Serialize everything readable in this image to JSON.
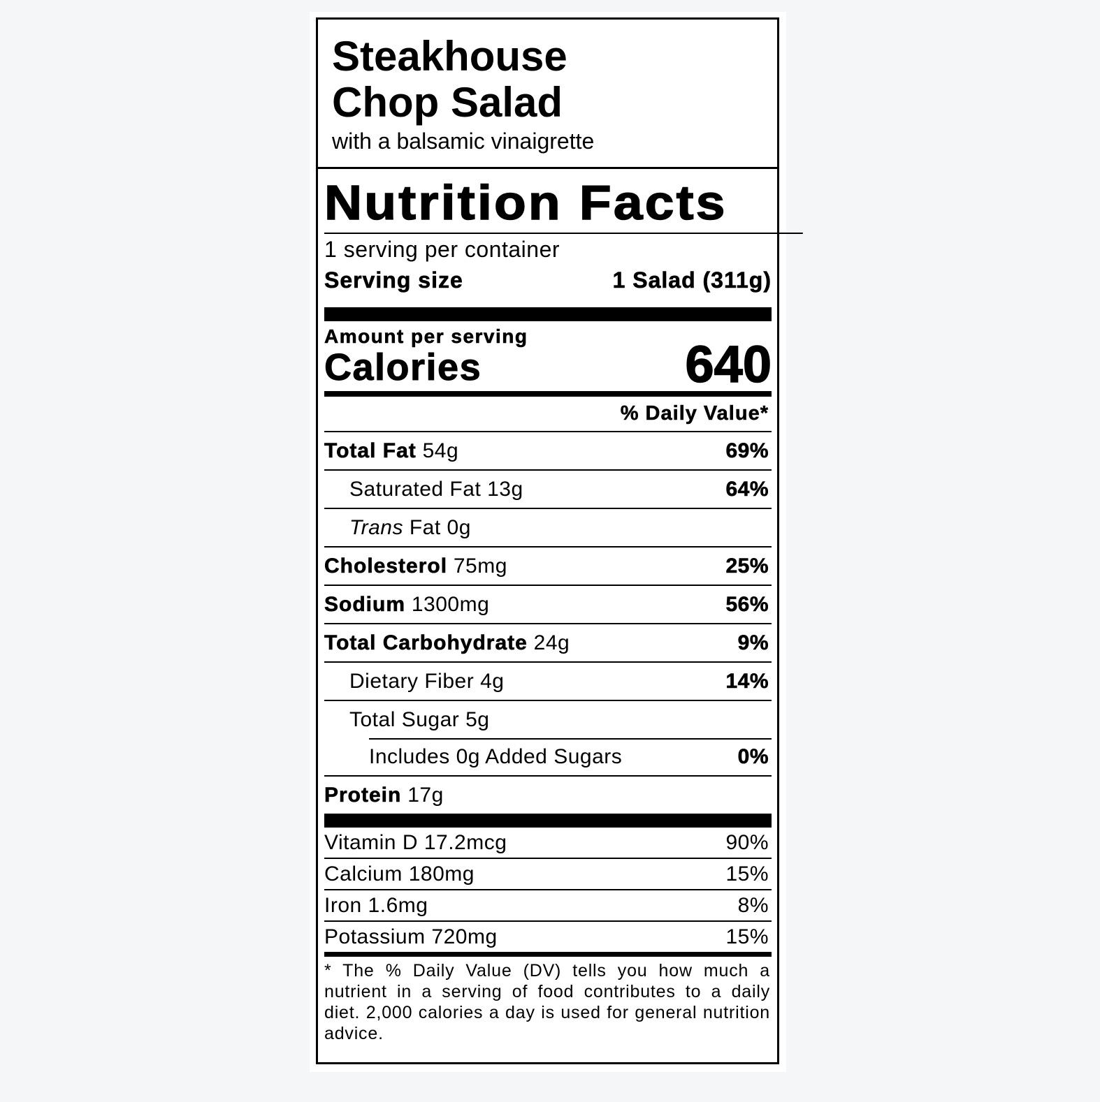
{
  "header": {
    "title": "Steakhouse Chop Salad",
    "subtitle": "with a balsamic vinaigrette"
  },
  "label": {
    "heading": "Nutrition Facts",
    "servings": "1 serving per container",
    "serving_size_label": "Serving size",
    "serving_size": "1 Salad (311g)",
    "amount_per_serving": "Amount per serving",
    "calories_label": "Calories",
    "calories": 640,
    "daily_value_header": "% Daily Value*",
    "nutrients": [
      {
        "name": "Total Fat",
        "amount": "54g",
        "dv": "69%"
      },
      {
        "name": "Saturated Fat",
        "amount": "13g",
        "dv": "64%"
      },
      {
        "name_italic": "Trans",
        "name": "Fat",
        "amount": "0g"
      },
      {
        "name": "Cholesterol",
        "amount": "75mg",
        "dv": "25%"
      },
      {
        "name": "Sodium",
        "amount": "1300mg",
        "dv": "56%"
      },
      {
        "name": "Total Carbohydrate",
        "amount": "24g",
        "dv": "9%"
      },
      {
        "name": "Dietary Fiber",
        "amount": "4g",
        "dv": "14%"
      },
      {
        "name": "Total Sugar",
        "amount": "5g"
      },
      {
        "name": "Includes 0g Added Sugars",
        "dv": "0%"
      },
      {
        "name": "Protein",
        "amount": "17g"
      }
    ],
    "vitamins": [
      {
        "name": "Vitamin D",
        "amount": "17.2mcg",
        "dv": "90%"
      },
      {
        "name": "Calcium",
        "amount": "180mg",
        "dv": "15%"
      },
      {
        "name": "Iron",
        "amount": "1.6mg",
        "dv": "8%"
      },
      {
        "name": "Potassium",
        "amount": "720mg",
        "dv": "15%"
      }
    ],
    "footnote": "* The % Daily Value (DV) tells you how much a nutrient in a serving of food contributes to a daily diet. 2,000 calories a day is used for general nutrition advice."
  }
}
